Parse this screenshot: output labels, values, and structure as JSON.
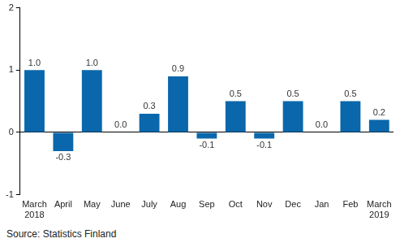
{
  "chart_data": {
    "type": "bar",
    "categories": [
      "March\n2018",
      "April",
      "May",
      "June",
      "July",
      "Aug",
      "Sep",
      "Oct",
      "Nov",
      "Dec",
      "Jan",
      "Feb",
      "March\n2019"
    ],
    "values": [
      1.0,
      -0.3,
      1.0,
      0.0,
      0.3,
      0.9,
      -0.1,
      0.5,
      -0.1,
      0.5,
      0.0,
      0.5,
      0.2
    ],
    "value_labels": [
      "1.0",
      "-0.3",
      "1.0",
      "0.0",
      "0.3",
      "0.9",
      "-0.1",
      "0.5",
      "-0.1",
      "0.5",
      "0.0",
      "0.5",
      "0.2"
    ],
    "data_labels": true,
    "color": "#0a67ab",
    "ylim": [
      -1,
      2
    ],
    "yticks": [
      -1,
      0,
      1,
      2
    ],
    "grid": false,
    "source": "Source: Statistics Finland"
  }
}
